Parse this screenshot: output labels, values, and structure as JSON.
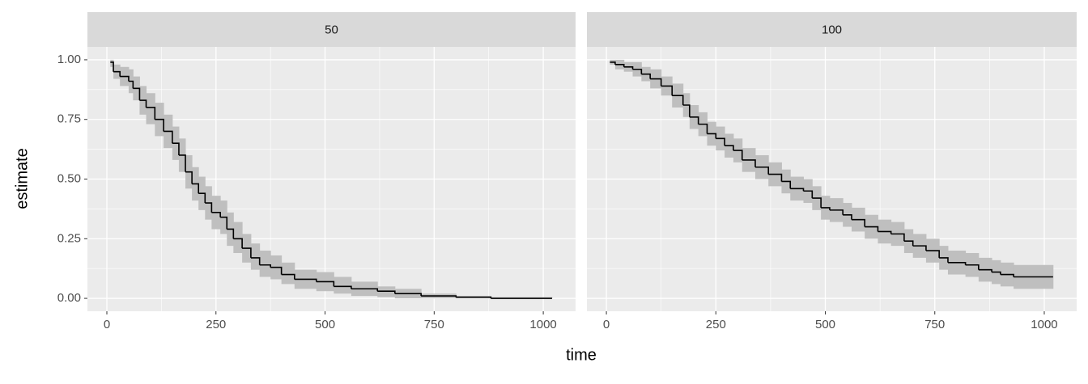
{
  "chart_data": {
    "type": "step",
    "xlabel": "time",
    "ylabel": "estimate",
    "xlim": [
      -44.5,
      1074
    ],
    "ylim": [
      -0.054,
      1.054
    ],
    "xticks": [
      0,
      250,
      500,
      750,
      1000
    ],
    "xminor": [
      125,
      375,
      625,
      875
    ],
    "yticks": [
      {
        "value": 0,
        "label": "0.00"
      },
      {
        "value": 0.25,
        "label": "0.25"
      },
      {
        "value": 0.5,
        "label": "0.50"
      },
      {
        "value": 0.75,
        "label": "0.75"
      },
      {
        "value": 1,
        "label": "1.00"
      }
    ],
    "yminor": [
      0.125,
      0.375,
      0.625,
      0.875
    ],
    "line_color": "#000000",
    "band_color": "#bfbfbf",
    "grid": true,
    "facets": [
      {
        "title": "50",
        "x": [
          8,
          15,
          30,
          50,
          60,
          75,
          90,
          110,
          130,
          150,
          165,
          180,
          195,
          210,
          225,
          240,
          260,
          275,
          290,
          310,
          330,
          350,
          375,
          400,
          430,
          480,
          520,
          560,
          620,
          660,
          720,
          800,
          880,
          1020
        ],
        "values": [
          0.99,
          0.95,
          0.93,
          0.91,
          0.88,
          0.83,
          0.8,
          0.75,
          0.7,
          0.65,
          0.6,
          0.53,
          0.48,
          0.44,
          0.4,
          0.36,
          0.34,
          0.29,
          0.25,
          0.21,
          0.17,
          0.14,
          0.13,
          0.1,
          0.08,
          0.07,
          0.05,
          0.04,
          0.03,
          0.02,
          0.01,
          0.005,
          0,
          0
        ],
        "lower": [
          0.97,
          0.92,
          0.89,
          0.86,
          0.83,
          0.77,
          0.73,
          0.68,
          0.63,
          0.58,
          0.53,
          0.46,
          0.41,
          0.37,
          0.33,
          0.29,
          0.27,
          0.22,
          0.19,
          0.15,
          0.12,
          0.09,
          0.08,
          0.06,
          0.04,
          0.03,
          0.02,
          0.01,
          0.005,
          0,
          0,
          0,
          0,
          0
        ],
        "upper": [
          1,
          0.98,
          0.97,
          0.96,
          0.93,
          0.89,
          0.86,
          0.82,
          0.77,
          0.72,
          0.67,
          0.6,
          0.55,
          0.51,
          0.47,
          0.43,
          0.41,
          0.36,
          0.32,
          0.27,
          0.23,
          0.2,
          0.18,
          0.15,
          0.12,
          0.11,
          0.09,
          0.07,
          0.05,
          0.04,
          0.02,
          0.01,
          0.005,
          0.005
        ]
      },
      {
        "title": "100",
        "x": [
          8,
          20,
          40,
          60,
          80,
          100,
          125,
          150,
          175,
          190,
          210,
          230,
          250,
          270,
          290,
          310,
          340,
          370,
          400,
          420,
          450,
          470,
          490,
          510,
          540,
          560,
          590,
          620,
          650,
          680,
          700,
          730,
          760,
          780,
          820,
          850,
          880,
          900,
          930,
          1020
        ],
        "values": [
          0.99,
          0.98,
          0.97,
          0.96,
          0.94,
          0.92,
          0.89,
          0.85,
          0.81,
          0.76,
          0.73,
          0.69,
          0.67,
          0.64,
          0.62,
          0.58,
          0.55,
          0.52,
          0.49,
          0.46,
          0.45,
          0.42,
          0.38,
          0.37,
          0.35,
          0.33,
          0.3,
          0.28,
          0.27,
          0.24,
          0.22,
          0.2,
          0.17,
          0.15,
          0.14,
          0.12,
          0.11,
          0.1,
          0.09,
          0.09
        ],
        "lower": [
          0.98,
          0.96,
          0.95,
          0.93,
          0.91,
          0.88,
          0.85,
          0.8,
          0.76,
          0.71,
          0.68,
          0.64,
          0.62,
          0.59,
          0.57,
          0.53,
          0.5,
          0.47,
          0.44,
          0.41,
          0.4,
          0.37,
          0.33,
          0.32,
          0.3,
          0.28,
          0.25,
          0.23,
          0.22,
          0.19,
          0.17,
          0.15,
          0.12,
          0.1,
          0.09,
          0.07,
          0.06,
          0.05,
          0.04,
          0.04
        ],
        "upper": [
          1,
          1,
          0.99,
          0.99,
          0.97,
          0.96,
          0.93,
          0.9,
          0.86,
          0.81,
          0.78,
          0.74,
          0.72,
          0.69,
          0.67,
          0.63,
          0.6,
          0.57,
          0.54,
          0.51,
          0.5,
          0.47,
          0.43,
          0.42,
          0.4,
          0.38,
          0.35,
          0.33,
          0.32,
          0.29,
          0.27,
          0.25,
          0.22,
          0.2,
          0.19,
          0.17,
          0.16,
          0.15,
          0.14,
          0.14
        ]
      }
    ]
  }
}
